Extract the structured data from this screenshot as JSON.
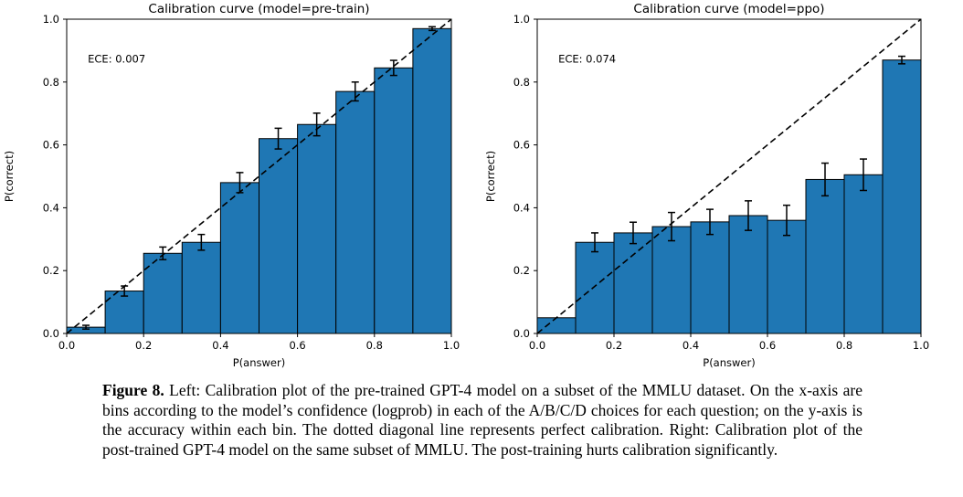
{
  "figure": {
    "caption": {
      "label": "Figure 8.",
      "text": " Left: Calibration plot of the pre-trained GPT-4 model on a subset of the MMLU dataset. On the x-axis are bins according to the model’s confidence (logprob) in each of the A/B/C/D choices for each question; on the y-axis is the accuracy within each bin. The dotted diagonal line represents perfect calibration. Right: Calibration plot of the post-trained GPT-4 model on the same subset of MMLU. The post-training hurts calibration significantly."
    }
  },
  "chart_data": [
    {
      "type": "bar",
      "title": "Calibration curve (model=pre-train)",
      "annotation": "ECE: 0.007",
      "xlabel": "P(answer)",
      "ylabel": "P(correct)",
      "xlim": [
        0.0,
        1.0
      ],
      "ylim": [
        0.0,
        1.0
      ],
      "x_ticks": [
        "0.0",
        "0.2",
        "0.4",
        "0.6",
        "0.8",
        "1.0"
      ],
      "y_ticks": [
        "0.0",
        "0.2",
        "0.4",
        "0.6",
        "0.8",
        "1.0"
      ],
      "bin_edges": [
        0.0,
        0.1,
        0.2,
        0.3,
        0.4,
        0.5,
        0.6,
        0.7,
        0.8,
        0.9,
        1.0
      ],
      "values": [
        0.02,
        0.135,
        0.255,
        0.29,
        0.48,
        0.62,
        0.665,
        0.77,
        0.845,
        0.97
      ],
      "errors": [
        0.006,
        0.016,
        0.02,
        0.025,
        0.032,
        0.033,
        0.036,
        0.03,
        0.024,
        0.006
      ],
      "reference_line": "dashed y=x diagonal (perfect calibration)",
      "grid": false,
      "legend": "none",
      "bar_color": "#1f77b4",
      "bar_edge_color": "#000000",
      "line_color": "#000000"
    },
    {
      "type": "bar",
      "title": "Calibration curve (model=ppo)",
      "annotation": "ECE: 0.074",
      "xlabel": "P(answer)",
      "ylabel": "P(correct)",
      "xlim": [
        0.0,
        1.0
      ],
      "ylim": [
        0.0,
        1.0
      ],
      "x_ticks": [
        "0.0",
        "0.2",
        "0.4",
        "0.6",
        "0.8",
        "1.0"
      ],
      "y_ticks": [
        "0.0",
        "0.2",
        "0.4",
        "0.6",
        "0.8",
        "1.0"
      ],
      "bin_edges": [
        0.0,
        0.1,
        0.2,
        0.3,
        0.4,
        0.5,
        0.6,
        0.7,
        0.8,
        0.9,
        1.0
      ],
      "values": [
        0.05,
        0.29,
        0.32,
        0.34,
        0.355,
        0.375,
        0.36,
        0.49,
        0.505,
        0.87
      ],
      "errors": [
        0,
        0.03,
        0.034,
        0.045,
        0.04,
        0.047,
        0.048,
        0.052,
        0.05,
        0.012
      ],
      "reference_line": "dashed y=x diagonal (perfect calibration)",
      "grid": false,
      "legend": "none",
      "bar_color": "#1f77b4",
      "bar_edge_color": "#000000",
      "line_color": "#000000"
    }
  ]
}
